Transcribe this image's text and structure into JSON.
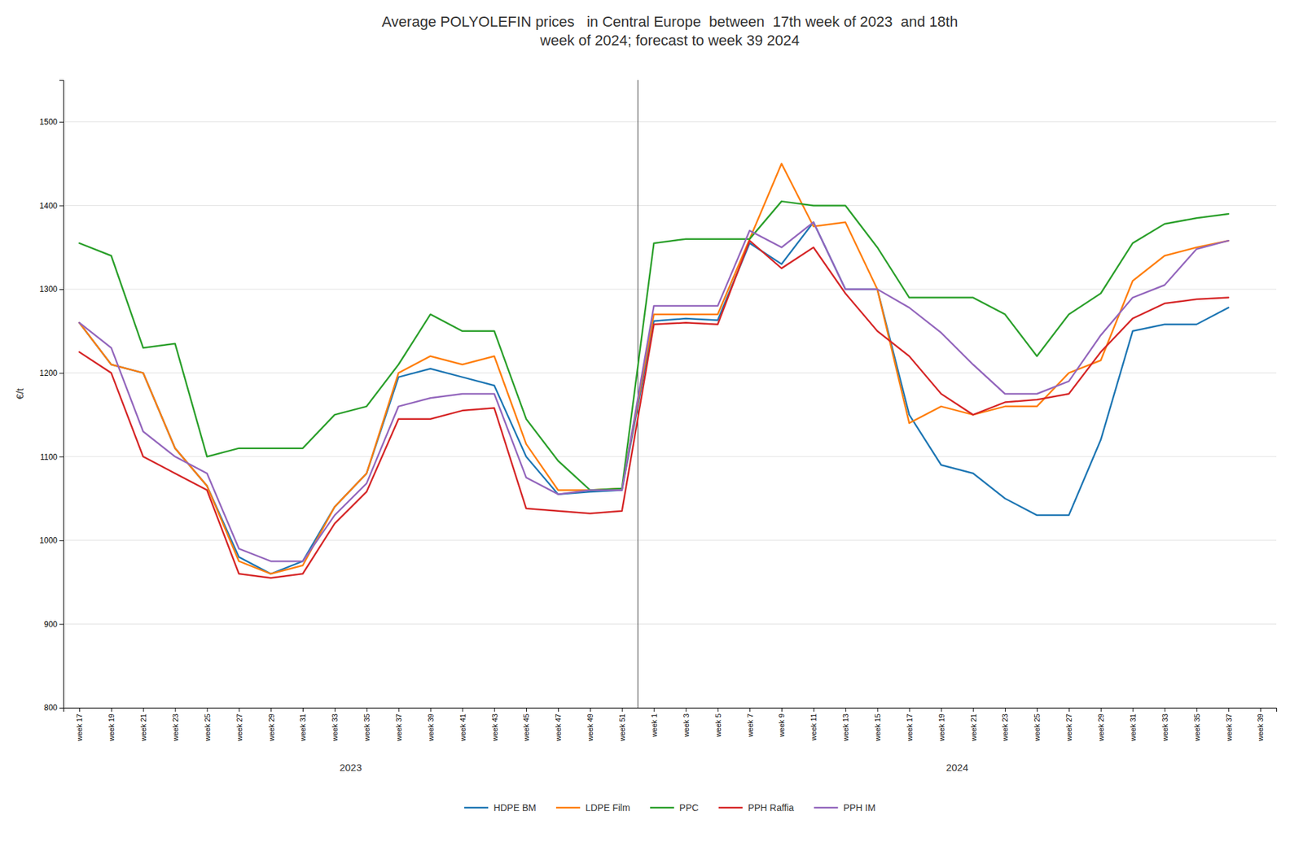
{
  "chart_data": {
    "type": "line",
    "title": "Average POLYOLEFIN prices   in Central Europe  between  17th week of 2023  and 18th\nweek of 2024; forecast to week 39 2024",
    "y_label": "€/t",
    "categories": [
      "week 17",
      "week 19",
      "week 21",
      "week 23",
      "week 25",
      "week 27",
      "week 29",
      "week 31",
      "week 33",
      "week 35",
      "week 37",
      "week 39",
      "week 41",
      "week 43",
      "week 45",
      "week 47",
      "week 49",
      "week 51",
      "week 1",
      "week 3",
      "week 5",
      "week 7",
      "week 9",
      "week 11",
      "week 13",
      "week 15",
      "week 17",
      "week 19",
      "week 21",
      "week 23",
      "week 25",
      "week 27",
      "week 29",
      "week 31",
      "week 33",
      "week 35",
      "week 37",
      "week 39"
    ],
    "series": [
      {
        "name": "HDPE BM",
        "values": [
          1260,
          1210,
          1200,
          1110,
          1065,
          980,
          960,
          975,
          1040,
          1080,
          1195,
          1205,
          1195,
          1185,
          1100,
          1055,
          1058,
          1060,
          1262,
          1265,
          1263,
          1355,
          1330,
          1380,
          1300,
          1300,
          1150,
          1090,
          1080,
          1050,
          1030,
          1030,
          1120,
          1250,
          1258,
          1258,
          1278,
          null
        ]
      },
      {
        "name": "LDPE Film",
        "values": [
          1260,
          1210,
          1200,
          1110,
          1065,
          975,
          960,
          970,
          1040,
          1080,
          1200,
          1220,
          1210,
          1220,
          1115,
          1060,
          1060,
          1062,
          1270,
          1270,
          1270,
          1360,
          1450,
          1375,
          1380,
          1300,
          1140,
          1160,
          1150,
          1160,
          1160,
          1200,
          1215,
          1310,
          1340,
          1350,
          1358,
          null
        ]
      },
      {
        "name": "PPC",
        "values": [
          1355,
          1340,
          1230,
          1235,
          1100,
          1110,
          1110,
          1110,
          1150,
          1160,
          1210,
          1270,
          1250,
          1250,
          1145,
          1095,
          1060,
          1062,
          1355,
          1360,
          1360,
          1360,
          1405,
          1400,
          1400,
          1350,
          1290,
          1290,
          1290,
          1270,
          1220,
          1270,
          1295,
          1355,
          1378,
          1385,
          1390,
          null
        ]
      },
      {
        "name": "PPH Raffia",
        "values": [
          1225,
          1200,
          1100,
          1080,
          1060,
          960,
          955,
          960,
          1020,
          1058,
          1145,
          1145,
          1155,
          1158,
          1038,
          1035,
          1032,
          1035,
          1258,
          1260,
          1258,
          1358,
          1325,
          1350,
          1295,
          1250,
          1220,
          1175,
          1150,
          1165,
          1168,
          1175,
          1225,
          1265,
          1283,
          1288,
          1290,
          null
        ]
      },
      {
        "name": "PPH IM",
        "values": [
          1260,
          1230,
          1130,
          1100,
          1080,
          990,
          975,
          975,
          1030,
          1068,
          1160,
          1170,
          1175,
          1175,
          1075,
          1055,
          1060,
          1060,
          1280,
          1280,
          1280,
          1370,
          1350,
          1380,
          1300,
          1300,
          1278,
          1248,
          1210,
          1175,
          1175,
          1190,
          1245,
          1290,
          1305,
          1348,
          1358,
          null
        ]
      }
    ],
    "ylim": [
      800,
      1550
    ],
    "yticks": [
      800,
      900,
      1000,
      1100,
      1200,
      1300,
      1400,
      1500
    ],
    "annotations": [
      "2023",
      "2024"
    ],
    "grid": true,
    "legend": "bottom"
  }
}
